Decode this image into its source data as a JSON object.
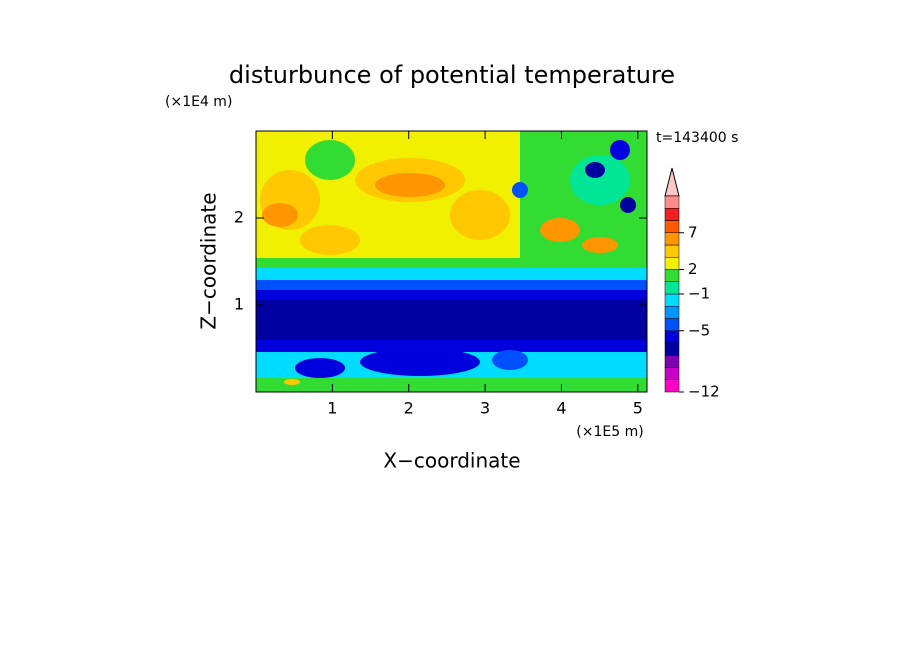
{
  "chart_data": {
    "type": "contour",
    "title": "disturbunce of potential temperature",
    "xlabel": "X−coordinate",
    "ylabel": "Z−coordinate",
    "x_unit": "(×1E5 m)",
    "y_unit": "(×1E4 m)",
    "time_label": "t=143400 s",
    "xlim": [
      0,
      5.12
    ],
    "xticks": [
      1,
      2,
      3,
      4,
      5
    ],
    "ylim": [
      0,
      3
    ],
    "yticks": [
      1,
      2
    ],
    "colorbar": {
      "levels": [
        -12,
        -10.5,
        -9,
        -8,
        -6.5,
        -5,
        -3.5,
        -2,
        -1,
        0.5,
        2,
        3.5,
        5.5,
        7,
        9,
        11,
        13
      ],
      "colors": [
        "#ff00c8",
        "#c800c8",
        "#8000b4",
        "#0000a0",
        "#0000dc",
        "#0050ff",
        "#0096ff",
        "#00dcff",
        "#00e696",
        "#32dc32",
        "#f0f000",
        "#ffc800",
        "#ff9600",
        "#ff5a00",
        "#f02020",
        "#ff8c8c",
        "#ffc8c8"
      ],
      "ticks": [
        {
          "value": -12,
          "label": "−12"
        },
        {
          "value": -5,
          "label": "−5"
        },
        {
          "value": -1,
          "label": "−1"
        },
        2,
        7
      ]
    }
  }
}
